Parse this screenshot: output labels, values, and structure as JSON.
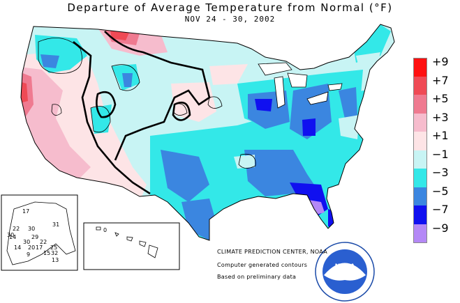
{
  "header": {
    "title": "Departure of Average Temperature from Normal (°F)",
    "subtitle": "NOV 24 - 30, 2002"
  },
  "legend": {
    "items": [
      {
        "label": "+9",
        "color": "#ff1010"
      },
      {
        "label": "+7",
        "color": "#ef4a55"
      },
      {
        "label": "+5",
        "color": "#ef7a90"
      },
      {
        "label": "+3",
        "color": "#f6bccd"
      },
      {
        "label": "+1",
        "color": "#fde4e6"
      },
      {
        "label": "−1",
        "color": "#c8f4f4"
      },
      {
        "label": "−3",
        "color": "#33e8e8"
      },
      {
        "label": "−5",
        "color": "#3b86e0"
      },
      {
        "label": "−7",
        "color": "#1010f0"
      },
      {
        "label": "−9",
        "color": "#b488f6"
      }
    ]
  },
  "alaska": {
    "values": [
      "17",
      "22",
      "30",
      "31",
      "14",
      "30",
      "29",
      "30",
      "22",
      "14",
      "20",
      "17",
      "25",
      "9",
      "15",
      "32",
      "13"
    ]
  },
  "hawaii": {
    "values": [
      "0"
    ]
  },
  "credits": {
    "org": "CLIMATE PREDICTION CENTER, NOAA",
    "line1": "Computer generated contours",
    "line2": "Based on preliminary data"
  },
  "logo": {
    "text": "NOAA"
  }
}
